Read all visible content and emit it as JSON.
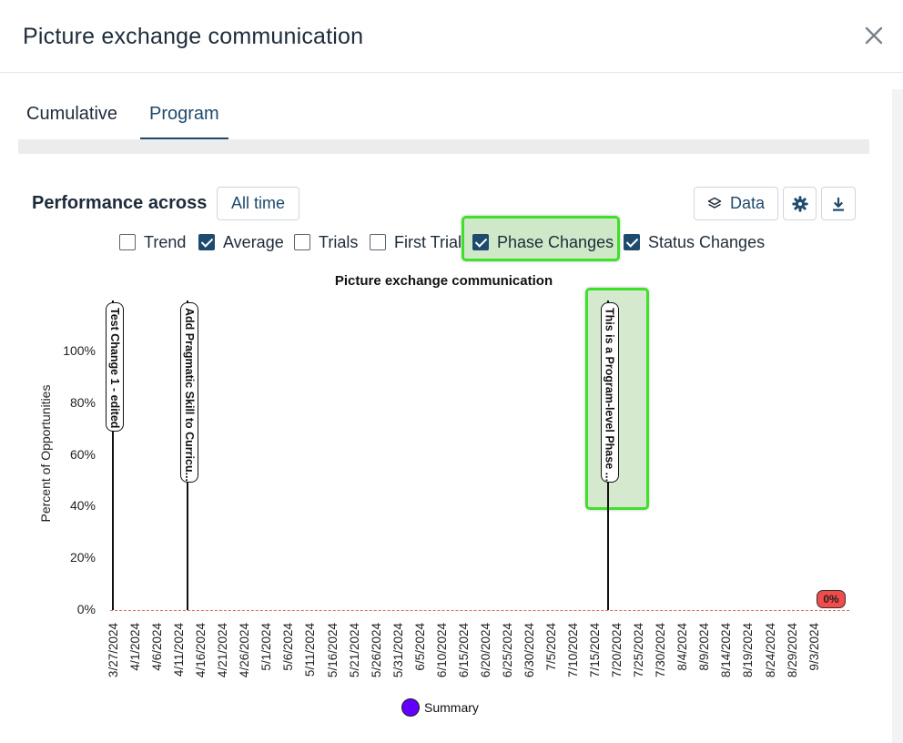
{
  "modal": {
    "title": "Picture exchange communication",
    "close_icon": "close-icon"
  },
  "tabs": [
    {
      "label": "Cumulative"
    },
    {
      "label": "Program"
    }
  ],
  "performance": {
    "label": "Performance across",
    "range_button": "All time"
  },
  "toolbar": {
    "data_label": "Data",
    "data_icon": "layers-icon",
    "settings_icon": "gear-icon",
    "download_icon": "download-icon"
  },
  "checkboxes": [
    {
      "label": "Trend",
      "checked": false
    },
    {
      "label": "Average",
      "checked": true
    },
    {
      "label": "Trials",
      "checked": false
    },
    {
      "label": "First Trial",
      "checked": false
    },
    {
      "label": "Phase Changes",
      "checked": true
    },
    {
      "label": "Status Changes",
      "checked": true
    }
  ],
  "chart_data": {
    "type": "line",
    "title": "Picture exchange communication",
    "ylabel": "Percent of Opportunities",
    "xlabel": "",
    "ylim": [
      0,
      120
    ],
    "y_ticks": [
      "0%",
      "20%",
      "40%",
      "60%",
      "80%",
      "100%"
    ],
    "categories": [
      "3/27/2024",
      "4/1/2024",
      "4/6/2024",
      "4/11/2024",
      "4/16/2024",
      "4/21/2024",
      "4/26/2024",
      "5/1/2024",
      "5/6/2024",
      "5/11/2024",
      "5/16/2024",
      "5/21/2024",
      "5/26/2024",
      "5/31/2024",
      "6/5/2024",
      "6/10/2024",
      "6/15/2024",
      "6/20/2024",
      "6/25/2024",
      "6/30/2024",
      "7/5/2024",
      "7/10/2024",
      "7/15/2024",
      "7/20/2024",
      "7/25/2024",
      "7/30/2024",
      "8/4/2024",
      "8/9/2024",
      "8/14/2024",
      "8/19/2024",
      "8/24/2024",
      "8/29/2024",
      "9/3/2024"
    ],
    "phase_changes": [
      {
        "date": "3/27/2024",
        "label": "Test Change 1 - edited"
      },
      {
        "date": "4/13/2024",
        "label": "Add Pragmatic Skill to Curricu..."
      },
      {
        "date": "7/18/2024",
        "label": "This is a Program-level Phase ..."
      }
    ],
    "series": [
      {
        "name": "Summary",
        "color": "#6200ff",
        "points": [
          {
            "x": "9/3/2024",
            "y": 0,
            "label": "0%"
          }
        ]
      }
    ],
    "legend": "bottom"
  }
}
